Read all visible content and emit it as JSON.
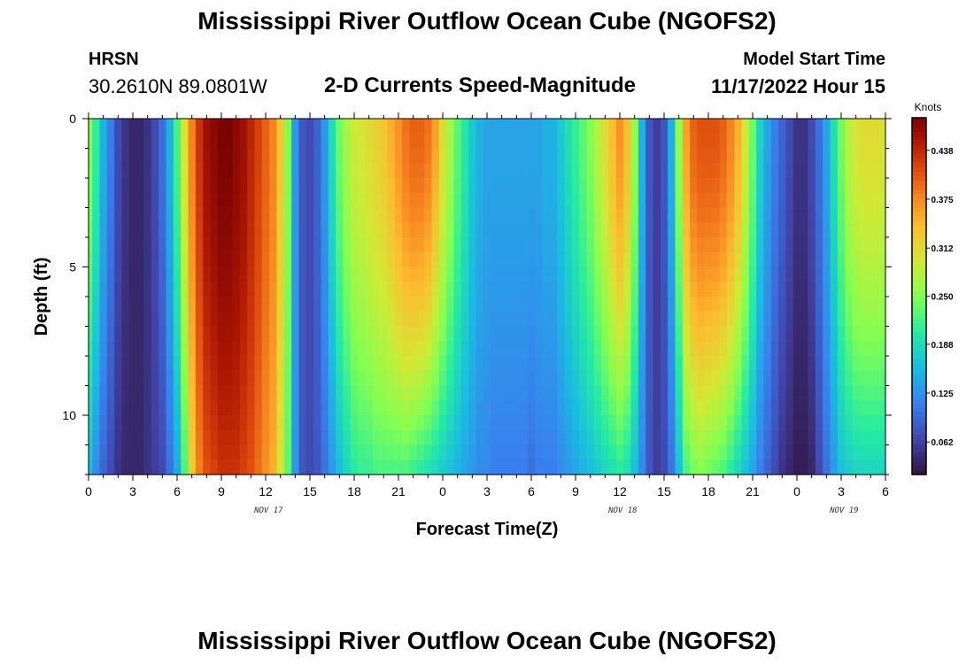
{
  "header": {
    "title": "Mississippi River Outflow Ocean Cube (NGOFS2)",
    "station": "HRSN",
    "coords": "30.2610N  89.0801W",
    "subtitle": "2-D Currents Speed-Magnitude",
    "start_label": "Model Start Time",
    "start_value": "11/17/2022 Hour 15"
  },
  "footer": {
    "title": "Mississippi River Outflow Ocean Cube (NGOFS2)"
  },
  "chart_data": {
    "type": "heatmap",
    "title": "2-D Currents Speed-Magnitude",
    "xlabel": "Forecast Time(Z)",
    "ylabel": "Depth (ft)",
    "x_range_hours": [
      0,
      54
    ],
    "x_ticks": [
      {
        "hour": 0,
        "label": "0"
      },
      {
        "hour": 3,
        "label": "3"
      },
      {
        "hour": 6,
        "label": "6"
      },
      {
        "hour": 9,
        "label": "9"
      },
      {
        "hour": 12,
        "label": "12"
      },
      {
        "hour": 15,
        "label": "15"
      },
      {
        "hour": 18,
        "label": "18"
      },
      {
        "hour": 21,
        "label": "21"
      },
      {
        "hour": 24,
        "label": "0"
      },
      {
        "hour": 27,
        "label": "3"
      },
      {
        "hour": 30,
        "label": "6"
      },
      {
        "hour": 33,
        "label": "9"
      },
      {
        "hour": 36,
        "label": "12"
      },
      {
        "hour": 39,
        "label": "15"
      },
      {
        "hour": 42,
        "label": "18"
      },
      {
        "hour": 45,
        "label": "21"
      },
      {
        "hour": 48,
        "label": "0"
      },
      {
        "hour": 51,
        "label": "3"
      },
      {
        "hour": 54,
        "label": "6"
      }
    ],
    "day_labels": [
      {
        "hour": 12.2,
        "label": "NOV 17"
      },
      {
        "hour": 36.2,
        "label": "NOV 18"
      },
      {
        "hour": 51.2,
        "label": "NOV 19"
      }
    ],
    "y_range_ft": [
      0,
      12
    ],
    "y_ticks": [
      {
        "value": 0,
        "label": "0"
      },
      {
        "value": 5,
        "label": "5"
      },
      {
        "value": 10,
        "label": "10"
      }
    ],
    "colorbar": {
      "unit": "Knots",
      "range": [
        0.02,
        0.48
      ],
      "ticks": [
        0.062,
        0.125,
        0.188,
        0.25,
        0.312,
        0.375,
        0.438
      ],
      "tick_labels": [
        "0.062",
        "0.125",
        "0.188",
        "0.250",
        "0.312",
        "0.375",
        "0.438"
      ]
    },
    "profile_hours": [
      0,
      0.5,
      1,
      1.5,
      2,
      2.5,
      3,
      3.5,
      4,
      4.5,
      5,
      5.5,
      6,
      6.5,
      7,
      7.5,
      8,
      8.5,
      9,
      9.5,
      10,
      10.5,
      11,
      11.5,
      12,
      12.5,
      13,
      13.5,
      14,
      14.5,
      15,
      15.5,
      16,
      16.5,
      17,
      17.5,
      18,
      18.5,
      19,
      19.5,
      20,
      20.5,
      21,
      21.5,
      22,
      22.5,
      23,
      23.5,
      24,
      24.5,
      25,
      25.5,
      26,
      26.5,
      27,
      27.5,
      28,
      28.5,
      29,
      29.5,
      30,
      30.5,
      31,
      31.5,
      32,
      32.5,
      33,
      33.5,
      34,
      34.5,
      35,
      35.5,
      36,
      36.5,
      37,
      37.5,
      38,
      38.5,
      39,
      39.5,
      40,
      40.5,
      41,
      41.5,
      42,
      42.5,
      43,
      43.5,
      44,
      44.5,
      45,
      45.5,
      46,
      46.5,
      47,
      47.5,
      48,
      48.5,
      49,
      49.5,
      50,
      50.5,
      51,
      51.5,
      52,
      52.5,
      53,
      53.5,
      54
    ],
    "surface_speed": [
      0.26,
      0.21,
      0.15,
      0.11,
      0.07,
      0.05,
      0.04,
      0.04,
      0.05,
      0.07,
      0.1,
      0.15,
      0.22,
      0.3,
      0.38,
      0.43,
      0.46,
      0.47,
      0.48,
      0.48,
      0.47,
      0.46,
      0.44,
      0.42,
      0.4,
      0.38,
      0.33,
      0.25,
      0.13,
      0.08,
      0.07,
      0.09,
      0.13,
      0.19,
      0.24,
      0.27,
      0.29,
      0.3,
      0.31,
      0.32,
      0.33,
      0.35,
      0.37,
      0.39,
      0.4,
      0.4,
      0.39,
      0.36,
      0.31,
      0.27,
      0.23,
      0.2,
      0.17,
      0.15,
      0.14,
      0.14,
      0.14,
      0.14,
      0.14,
      0.14,
      0.14,
      0.14,
      0.15,
      0.15,
      0.17,
      0.19,
      0.21,
      0.23,
      0.25,
      0.28,
      0.31,
      0.34,
      0.37,
      0.34,
      0.26,
      0.15,
      0.08,
      0.06,
      0.08,
      0.15,
      0.26,
      0.36,
      0.4,
      0.41,
      0.41,
      0.41,
      0.4,
      0.38,
      0.35,
      0.3,
      0.24,
      0.18,
      0.14,
      0.11,
      0.09,
      0.07,
      0.05,
      0.05,
      0.07,
      0.1,
      0.14,
      0.19,
      0.24,
      0.28,
      0.3,
      0.31,
      0.31,
      0.31,
      0.3
    ],
    "bottom_speed": [
      0.16,
      0.12,
      0.09,
      0.07,
      0.05,
      0.04,
      0.04,
      0.04,
      0.05,
      0.06,
      0.07,
      0.1,
      0.14,
      0.22,
      0.32,
      0.38,
      0.41,
      0.42,
      0.43,
      0.43,
      0.43,
      0.42,
      0.41,
      0.39,
      0.37,
      0.35,
      0.3,
      0.23,
      0.13,
      0.08,
      0.07,
      0.08,
      0.1,
      0.13,
      0.16,
      0.18,
      0.2,
      0.21,
      0.21,
      0.22,
      0.22,
      0.22,
      0.22,
      0.22,
      0.21,
      0.2,
      0.19,
      0.18,
      0.17,
      0.16,
      0.15,
      0.14,
      0.13,
      0.12,
      0.12,
      0.11,
      0.11,
      0.11,
      0.11,
      0.11,
      0.1,
      0.11,
      0.11,
      0.11,
      0.12,
      0.13,
      0.14,
      0.15,
      0.16,
      0.17,
      0.18,
      0.19,
      0.2,
      0.19,
      0.16,
      0.12,
      0.08,
      0.06,
      0.07,
      0.1,
      0.16,
      0.22,
      0.24,
      0.25,
      0.24,
      0.23,
      0.22,
      0.2,
      0.18,
      0.16,
      0.14,
      0.11,
      0.09,
      0.07,
      0.05,
      0.04,
      0.03,
      0.03,
      0.04,
      0.07,
      0.1,
      0.13,
      0.16,
      0.17,
      0.18,
      0.18,
      0.18,
      0.18,
      0.18
    ]
  }
}
